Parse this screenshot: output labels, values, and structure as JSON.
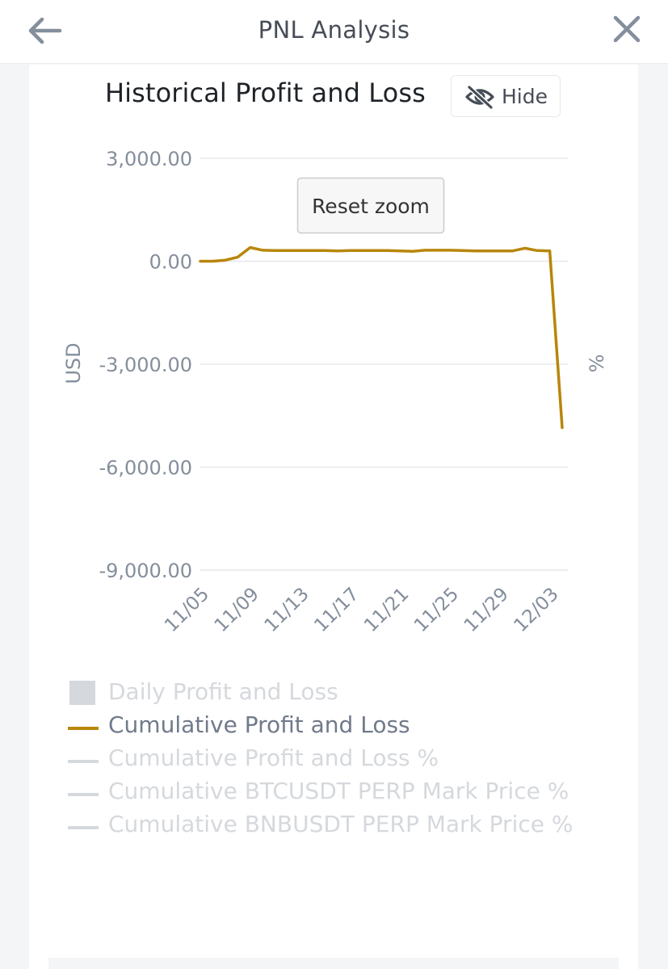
{
  "header": {
    "title": "PNL Analysis",
    "back_icon": "arrow-left-icon",
    "close_icon": "close-icon"
  },
  "panel": {
    "title": "Historical Profit and Loss",
    "hide_label": "Hide",
    "hide_icon": "eye-slash-icon",
    "reset_zoom_label": "Reset zoom",
    "y_axis_left_label": "USD",
    "y_axis_right_label": "%"
  },
  "chart_data": {
    "type": "line",
    "ylabel": "USD",
    "y2label": "%",
    "ylim": [
      -9000,
      3000
    ],
    "yticks": [
      3000,
      0,
      -3000,
      -6000,
      -9000
    ],
    "ytick_labels": [
      "3,000.00",
      "0.00",
      "-3,000.00",
      "-6,000.00",
      "-9,000.00"
    ],
    "xtick_labels": [
      "11/05",
      "11/09",
      "11/13",
      "11/17",
      "11/21",
      "11/25",
      "11/29",
      "12/03"
    ],
    "x": [
      "11/05",
      "11/06",
      "11/07",
      "11/08",
      "11/09",
      "11/10",
      "11/11",
      "11/12",
      "11/13",
      "11/14",
      "11/15",
      "11/16",
      "11/17",
      "11/18",
      "11/19",
      "11/20",
      "11/21",
      "11/22",
      "11/23",
      "11/24",
      "11/25",
      "11/26",
      "11/27",
      "11/28",
      "11/29",
      "11/30",
      "12/01",
      "12/02",
      "12/03",
      "12/04"
    ],
    "series": [
      {
        "name": "Cumulative Profit and Loss",
        "color": "#b8860b",
        "values": [
          0,
          0,
          30,
          120,
          400,
          320,
          310,
          310,
          310,
          310,
          310,
          300,
          310,
          310,
          310,
          310,
          300,
          290,
          320,
          320,
          320,
          310,
          300,
          300,
          300,
          300,
          380,
          310,
          300,
          -4850
        ]
      }
    ],
    "legend": [
      {
        "name": "Daily Profit and Loss",
        "marker": "square",
        "active": false
      },
      {
        "name": "Cumulative Profit and Loss",
        "marker": "line",
        "active": true
      },
      {
        "name": "Cumulative Profit and Loss %",
        "marker": "line",
        "active": false
      },
      {
        "name": "Cumulative BTCUSDT PERP Mark Price %",
        "marker": "line",
        "active": false
      },
      {
        "name": "Cumulative BNBUSDT PERP Mark Price %",
        "marker": "line",
        "active": false
      }
    ],
    "grid": true,
    "legend_position": "bottom"
  },
  "colors": {
    "accent": "#b8860b",
    "inactive": "#d5d8dc",
    "text_muted": "#707a8a"
  }
}
